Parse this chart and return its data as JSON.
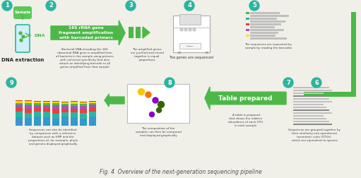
{
  "title": "Fig. 4  Overview of the next-generation sequencing pipeline",
  "bg_color": "#f0efe8",
  "green": "#4db848",
  "teal": "#2bb5a0",
  "step2_title": "16S rRNA gene\nfragment amplification\nwith barcoded primers",
  "step2_desc": "Bacterial DNA encoding the 16S\nribosomal RNA gene is amplified from\nall bacteria in the sample using primers\nwith universal specificity that also\nattach an identifying barcode to all\ngenes amplified from that sample",
  "step3_desc": "The amplified genes\nare purified and mixed\ntogether in equal\nproportions",
  "step4_desc": "The genes are sequenced",
  "step5_desc": "The sequences are separated by\nsample by reading the barcodes",
  "step6_desc": "Sequences are grouped together by\ntheir similarity into operational\ntaxonomic units (OTUs),\nwhich are equivalent to species",
  "step7_label": "Table prepared",
  "step7_desc": "A table is prepared\nthat shows the relative\nabundance of each OTU\nin each sample",
  "step8_desc": "The composition of the\nsamples can then be compared\nand displayed graphically",
  "step9_desc": "Sequences can also be identified\nby comparison with a reference\ndataset such as HMP and the\nproportions of, for example, phyla\nand genera displayed graphically",
  "step1_label": "DNA extraction",
  "step1_sample": "Sample",
  "seq_bar_colors": [
    "#4db848",
    "#2bb5a0",
    "#e84040",
    "#9b59b6",
    "#f0e040"
  ],
  "bar9_colors": [
    "#3399cc",
    "#2bb5a0",
    "#e84040",
    "#9b59b6",
    "#4db848",
    "#f5d800",
    "#cc4400"
  ]
}
